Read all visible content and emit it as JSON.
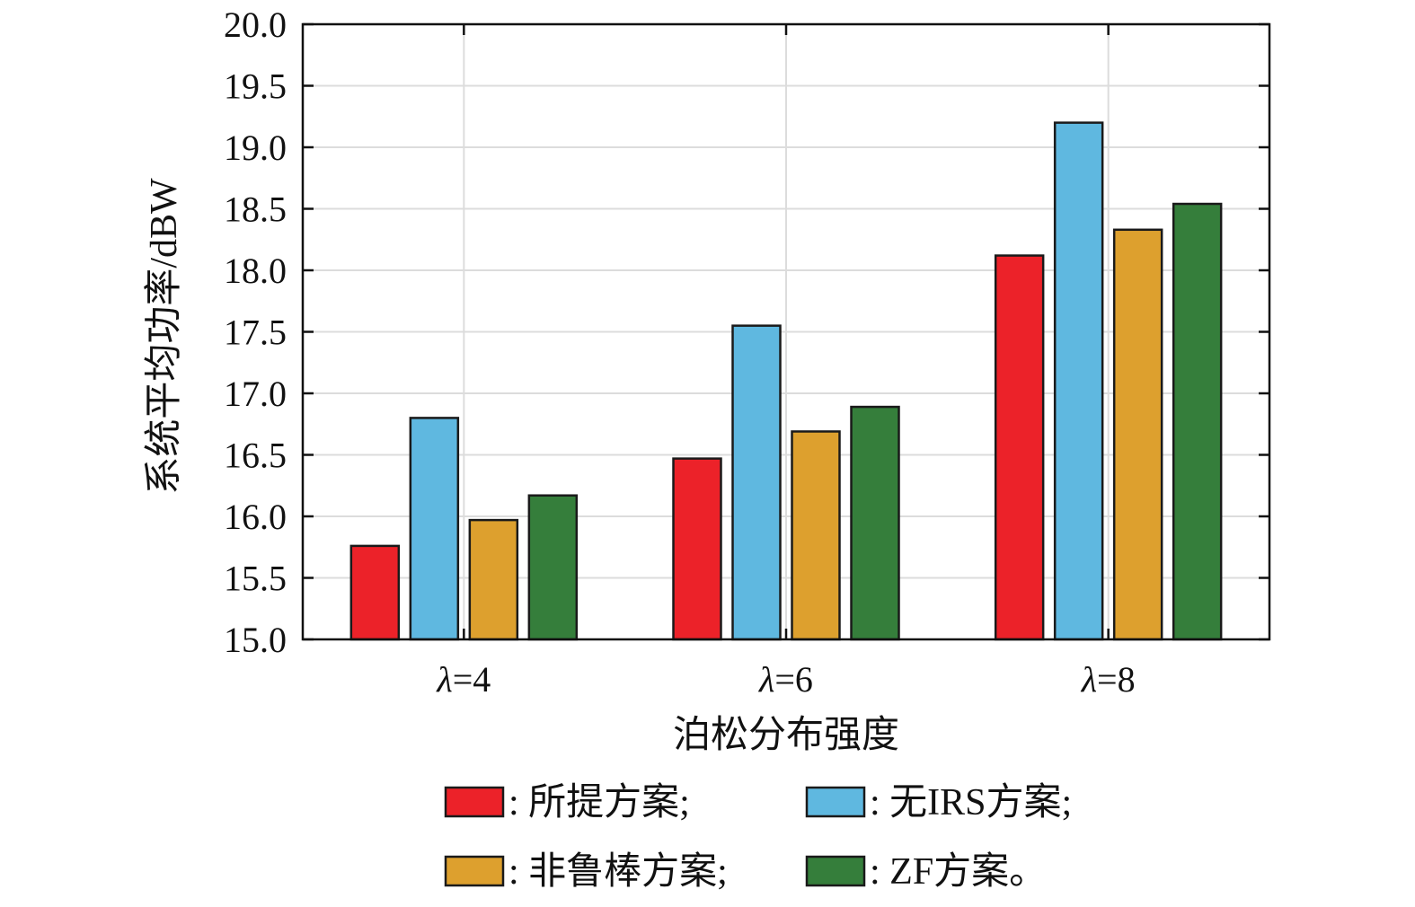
{
  "chart_data": {
    "type": "bar",
    "categories": [
      "λ=4",
      "λ=6",
      "λ=8"
    ],
    "category_parts": [
      {
        "symbol": "λ",
        "rest": "=4"
      },
      {
        "symbol": "λ",
        "rest": "=6"
      },
      {
        "symbol": "λ",
        "rest": "=8"
      }
    ],
    "series": [
      {
        "name": "所提方案;",
        "color": "#ec2229",
        "values": [
          15.76,
          16.47,
          18.12
        ]
      },
      {
        "name": "无IRS方案;",
        "color": "#5fb8e0",
        "values": [
          16.8,
          17.55,
          19.2
        ]
      },
      {
        "name": "非鲁棒方案;",
        "color": "#dda02e",
        "values": [
          15.97,
          16.69,
          18.33
        ]
      },
      {
        "name": "ZF方案。",
        "color": "#357e3b",
        "values": [
          16.17,
          16.89,
          18.54
        ]
      }
    ],
    "xlabel": "泊松分布强度",
    "ylabel": "系统平均功率/dBW",
    "ylim": [
      15.0,
      20.0
    ],
    "yticks": [
      "15.0",
      "15.5",
      "16.0",
      "16.5",
      "17.0",
      "17.5",
      "18.0",
      "18.5",
      "19.0",
      "19.5",
      "20.0"
    ],
    "grid": true,
    "legend_position": "bottom",
    "legend_separator": ":"
  }
}
